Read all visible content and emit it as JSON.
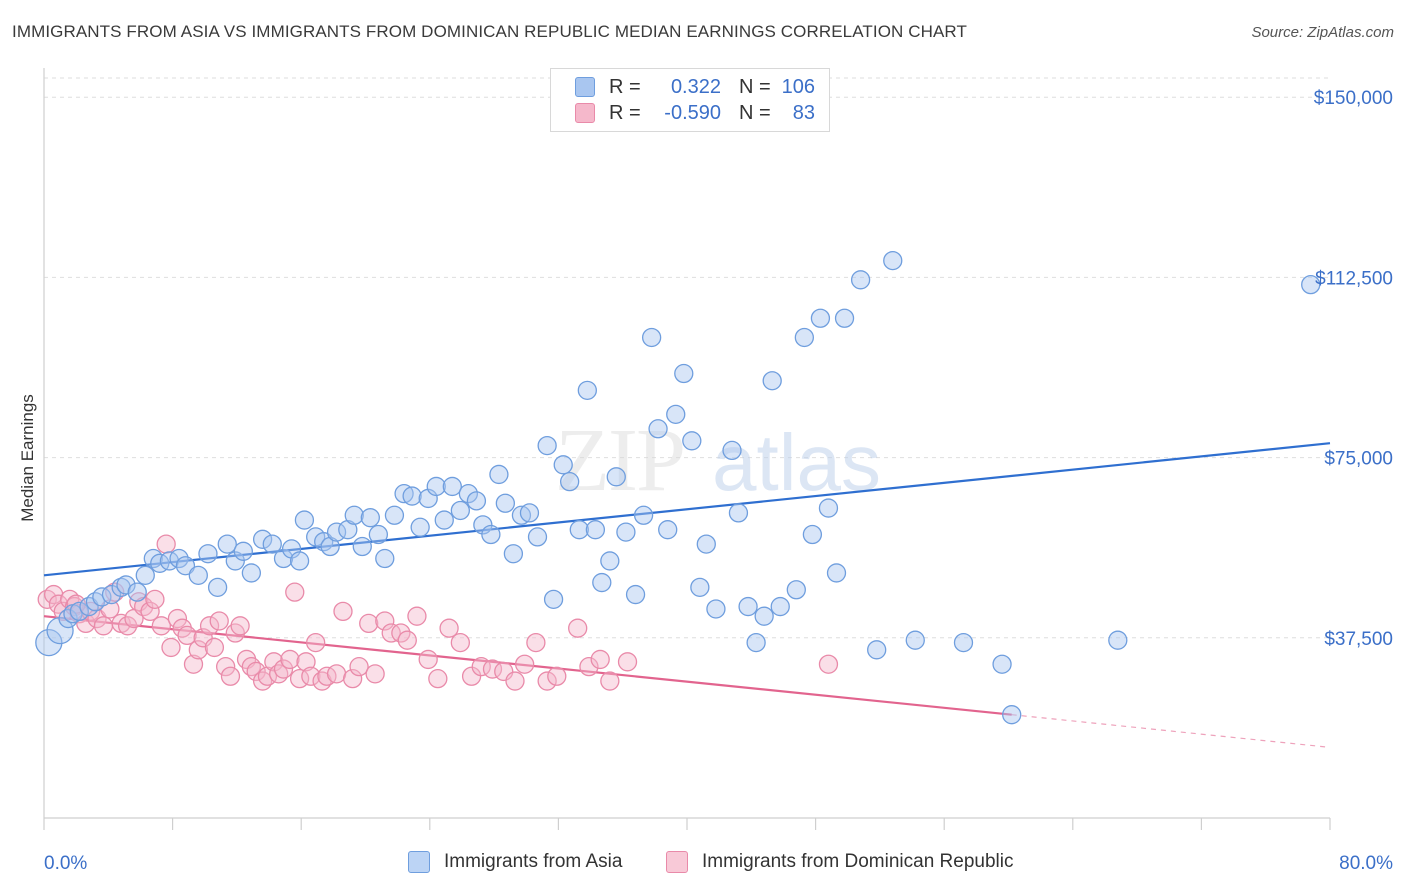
{
  "title": "IMMIGRANTS FROM ASIA VS IMMIGRANTS FROM DOMINICAN REPUBLIC MEDIAN EARNINGS CORRELATION CHART",
  "source": "Source: ZipAtlas.com",
  "watermark": "ZIPatlas",
  "legend_top": [
    {
      "r_label": "R =",
      "r_value": "0.322",
      "n_label": "N =",
      "n_value": "106",
      "color": "#a9c6f0",
      "edge": "#6f9ede"
    },
    {
      "r_label": "R =",
      "r_value": "-0.590",
      "n_label": "N =",
      "n_value": "83",
      "color": "#f5b8cb",
      "edge": "#e98aa9"
    }
  ],
  "legend_bottom": [
    {
      "label": "Immigrants from Asia",
      "color": "#a9c6f0",
      "edge": "#6f9ede"
    },
    {
      "label": "Immigrants from Dominican Republic",
      "color": "#f5b8cb",
      "edge": "#e98aa9"
    }
  ],
  "chart_data": {
    "type": "scatter",
    "ylabel": "Median Earnings",
    "xlabel": "",
    "x_tick_labels": [
      "0.0%",
      "80.0%"
    ],
    "y_tick_labels": [
      "$37,500",
      "$75,000",
      "$112,500",
      "$150,000"
    ],
    "y_ticks": [
      37500,
      75000,
      112500,
      150000
    ],
    "xlim": [
      0,
      80
    ],
    "ylim": [
      0,
      154000
    ],
    "grid": true,
    "legend_placement": "top-center",
    "series": [
      {
        "name": "Immigrants from Asia",
        "color": "#6f9ede",
        "fill": "#a9c6f0",
        "trend": {
          "x0": 0,
          "y0": 50500,
          "x1": 80,
          "y1": 78000,
          "color": "#2f6fd0"
        },
        "points": [
          [
            0.3,
            36500
          ],
          [
            1.0,
            39000
          ],
          [
            1.5,
            41500
          ],
          [
            1.8,
            42500
          ],
          [
            2.2,
            43000
          ],
          [
            2.8,
            44000
          ],
          [
            3.2,
            45000
          ],
          [
            3.6,
            46000
          ],
          [
            4.2,
            46500
          ],
          [
            4.8,
            48000
          ],
          [
            5.1,
            48500
          ],
          [
            5.8,
            47000
          ],
          [
            6.3,
            50500
          ],
          [
            6.8,
            54000
          ],
          [
            7.2,
            53000
          ],
          [
            7.8,
            53500
          ],
          [
            8.4,
            54000
          ],
          [
            8.8,
            52500
          ],
          [
            9.6,
            50500
          ],
          [
            10.2,
            55000
          ],
          [
            10.8,
            48000
          ],
          [
            11.4,
            57000
          ],
          [
            11.9,
            53500
          ],
          [
            12.4,
            55500
          ],
          [
            12.9,
            51000
          ],
          [
            13.6,
            58000
          ],
          [
            14.2,
            57000
          ],
          [
            14.9,
            54000
          ],
          [
            15.4,
            56000
          ],
          [
            15.9,
            53500
          ],
          [
            16.2,
            62000
          ],
          [
            16.9,
            58500
          ],
          [
            17.4,
            57500
          ],
          [
            17.8,
            56500
          ],
          [
            18.2,
            59500
          ],
          [
            18.9,
            60000
          ],
          [
            19.3,
            63000
          ],
          [
            19.8,
            56500
          ],
          [
            20.3,
            62500
          ],
          [
            20.8,
            59000
          ],
          [
            21.2,
            54000
          ],
          [
            21.8,
            63000
          ],
          [
            22.4,
            67500
          ],
          [
            22.9,
            67000
          ],
          [
            23.4,
            60500
          ],
          [
            23.9,
            66500
          ],
          [
            24.4,
            69000
          ],
          [
            24.9,
            62000
          ],
          [
            25.4,
            69000
          ],
          [
            25.9,
            64000
          ],
          [
            26.4,
            67500
          ],
          [
            26.9,
            66000
          ],
          [
            27.3,
            61000
          ],
          [
            27.8,
            59000
          ],
          [
            28.3,
            71500
          ],
          [
            28.7,
            65500
          ],
          [
            29.2,
            55000
          ],
          [
            29.7,
            63000
          ],
          [
            30.2,
            63500
          ],
          [
            30.7,
            58500
          ],
          [
            31.3,
            77500
          ],
          [
            31.7,
            45500
          ],
          [
            32.3,
            73500
          ],
          [
            32.7,
            70000
          ],
          [
            33.3,
            60000
          ],
          [
            33.8,
            89000
          ],
          [
            34.3,
            60000
          ],
          [
            34.7,
            49000
          ],
          [
            35.2,
            53500
          ],
          [
            35.6,
            71000
          ],
          [
            36.2,
            59500
          ],
          [
            36.8,
            46500
          ],
          [
            37.3,
            63000
          ],
          [
            37.8,
            100000
          ],
          [
            38.2,
            81000
          ],
          [
            38.8,
            60000
          ],
          [
            39.3,
            84000
          ],
          [
            39.8,
            92500
          ],
          [
            40.3,
            78500
          ],
          [
            40.8,
            48000
          ],
          [
            41.2,
            57000
          ],
          [
            41.8,
            43500
          ],
          [
            42.8,
            76500
          ],
          [
            43.2,
            63500
          ],
          [
            43.8,
            44000
          ],
          [
            44.3,
            36500
          ],
          [
            44.8,
            42000
          ],
          [
            45.3,
            91000
          ],
          [
            45.8,
            44000
          ],
          [
            46.8,
            47500
          ],
          [
            47.3,
            100000
          ],
          [
            47.8,
            59000
          ],
          [
            48.3,
            104000
          ],
          [
            48.8,
            64500
          ],
          [
            49.3,
            51000
          ],
          [
            49.8,
            104000
          ],
          [
            50.8,
            112000
          ],
          [
            51.8,
            35000
          ],
          [
            52.8,
            116000
          ],
          [
            54.2,
            37000
          ],
          [
            57.2,
            36500
          ],
          [
            59.6,
            32000
          ],
          [
            60.2,
            21500
          ],
          [
            66.8,
            37000
          ],
          [
            78.8,
            111000
          ]
        ],
        "sizes_big": [
          [
            0.3,
            36500
          ],
          [
            1.0,
            39000
          ]
        ]
      },
      {
        "name": "Immigrants from Dominican Republic",
        "color": "#e98aa9",
        "fill": "#f5b8cb",
        "trend": {
          "x0": 0,
          "y0": 42000,
          "x1": 60.2,
          "y1": 21500,
          "color": "#e2648e",
          "dash_to_x": 80,
          "dash_to_y": 14700
        },
        "points": [
          [
            0.2,
            45500
          ],
          [
            0.6,
            46500
          ],
          [
            0.9,
            44500
          ],
          [
            1.2,
            43000
          ],
          [
            1.6,
            45500
          ],
          [
            1.9,
            44000
          ],
          [
            2.2,
            42500
          ],
          [
            2.6,
            40500
          ],
          [
            2.9,
            43000
          ],
          [
            3.3,
            41500
          ],
          [
            3.7,
            40000
          ],
          [
            4.1,
            43500
          ],
          [
            4.4,
            47000
          ],
          [
            4.8,
            40500
          ],
          [
            5.2,
            40000
          ],
          [
            5.6,
            41500
          ],
          [
            5.9,
            45000
          ],
          [
            6.2,
            44000
          ],
          [
            6.6,
            43000
          ],
          [
            6.9,
            45500
          ],
          [
            7.3,
            40000
          ],
          [
            7.6,
            57000
          ],
          [
            7.9,
            35500
          ],
          [
            8.3,
            41500
          ],
          [
            8.6,
            39500
          ],
          [
            8.9,
            38000
          ],
          [
            9.3,
            32000
          ],
          [
            9.6,
            35000
          ],
          [
            9.9,
            37500
          ],
          [
            10.3,
            40000
          ],
          [
            10.6,
            35500
          ],
          [
            10.9,
            41000
          ],
          [
            11.3,
            31500
          ],
          [
            11.6,
            29500
          ],
          [
            11.9,
            38500
          ],
          [
            12.2,
            40000
          ],
          [
            12.6,
            33000
          ],
          [
            12.9,
            31500
          ],
          [
            13.2,
            30500
          ],
          [
            13.6,
            28500
          ],
          [
            13.9,
            29500
          ],
          [
            14.3,
            32500
          ],
          [
            14.6,
            30000
          ],
          [
            14.9,
            31000
          ],
          [
            15.3,
            33000
          ],
          [
            15.6,
            47000
          ],
          [
            15.9,
            29000
          ],
          [
            16.3,
            32500
          ],
          [
            16.6,
            29500
          ],
          [
            16.9,
            36500
          ],
          [
            17.3,
            28500
          ],
          [
            17.6,
            29500
          ],
          [
            18.2,
            30000
          ],
          [
            18.6,
            43000
          ],
          [
            19.2,
            29000
          ],
          [
            19.6,
            31500
          ],
          [
            20.2,
            40500
          ],
          [
            20.6,
            30000
          ],
          [
            21.2,
            41000
          ],
          [
            21.6,
            38500
          ],
          [
            22.2,
            38500
          ],
          [
            22.6,
            37000
          ],
          [
            23.2,
            42000
          ],
          [
            23.9,
            33000
          ],
          [
            24.5,
            29000
          ],
          [
            25.2,
            39500
          ],
          [
            25.9,
            36500
          ],
          [
            26.6,
            29500
          ],
          [
            27.2,
            31500
          ],
          [
            27.9,
            31000
          ],
          [
            28.6,
            30500
          ],
          [
            29.3,
            28500
          ],
          [
            29.9,
            32000
          ],
          [
            30.6,
            36500
          ],
          [
            31.3,
            28500
          ],
          [
            31.9,
            29500
          ],
          [
            33.2,
            39500
          ],
          [
            33.9,
            31500
          ],
          [
            34.6,
            33000
          ],
          [
            35.2,
            28500
          ],
          [
            36.3,
            32500
          ],
          [
            48.8,
            32000
          ],
          [
            2.0,
            44500
          ]
        ]
      }
    ]
  }
}
